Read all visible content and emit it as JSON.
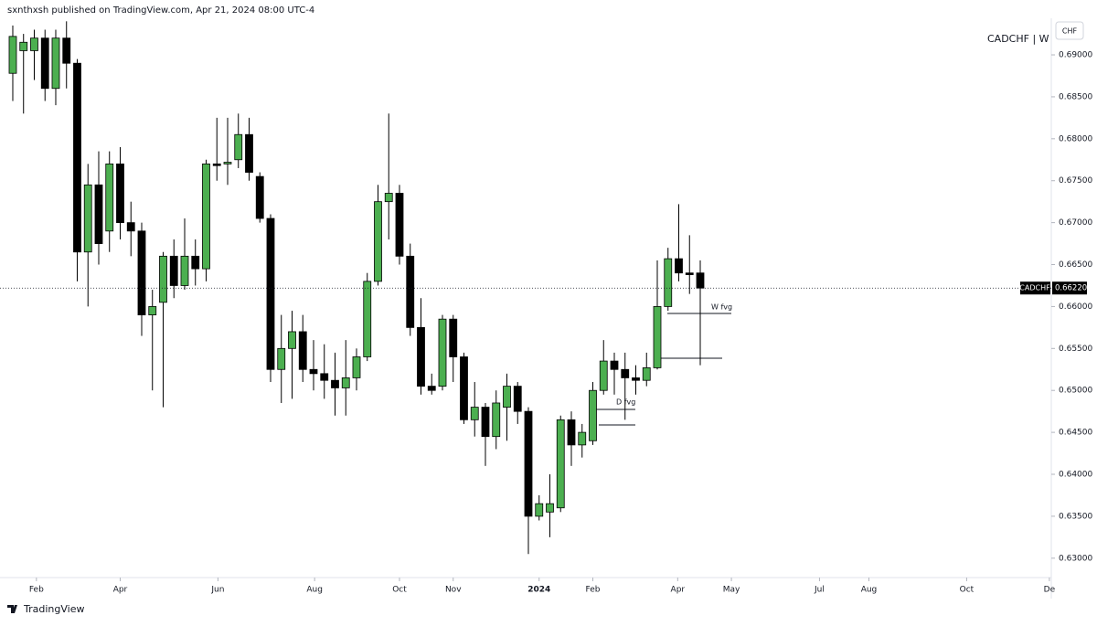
{
  "header": {
    "title": "sxnthxsh published on TradingView.com, Apr 21, 2024 08:00 UTC-4"
  },
  "footer": {
    "brand": "TradingView"
  },
  "chart_data": {
    "type": "candlestick",
    "legend": "CADCHF | W",
    "symbol": "CADCHF",
    "currency": "CHF",
    "up_color": "#4caf50",
    "down_color": "#000000",
    "x": [
      0,
      1,
      2,
      3,
      4,
      5,
      6,
      7,
      8,
      9,
      10,
      11,
      12,
      13,
      14,
      15,
      16,
      17,
      18,
      19,
      20,
      21,
      22,
      23,
      24,
      25,
      26,
      27,
      28,
      29,
      30,
      31,
      32,
      33,
      34,
      35,
      36,
      37,
      38,
      39,
      40,
      41,
      42,
      43,
      44,
      45,
      46,
      47,
      48,
      49,
      50,
      51,
      52,
      53,
      54,
      55,
      56,
      57,
      58,
      59,
      60,
      61,
      62,
      63,
      64
    ],
    "open": [
      0.6878,
      0.6905,
      0.6905,
      0.692,
      0.686,
      0.692,
      0.689,
      0.6665,
      0.6745,
      0.669,
      0.677,
      0.67,
      0.669,
      0.659,
      0.6605,
      0.666,
      0.6625,
      0.666,
      0.6645,
      0.677,
      0.677,
      0.6775,
      0.6805,
      0.6755,
      0.6705,
      0.6525,
      0.655,
      0.657,
      0.6525,
      0.652,
      0.6512,
      0.6503,
      0.6515,
      0.654,
      0.663,
      0.6725,
      0.6735,
      0.666,
      0.6575,
      0.6505,
      0.6505,
      0.6585,
      0.654,
      0.6465,
      0.648,
      0.6445,
      0.648,
      0.6505,
      0.6475,
      0.635,
      0.6355,
      0.636,
      0.6465,
      0.6435,
      0.644,
      0.65,
      0.6535,
      0.6525,
      0.6515,
      0.6512,
      0.6527,
      0.66,
      0.6657,
      0.664,
      0.664
    ],
    "high": [
      0.6935,
      0.6925,
      0.693,
      0.693,
      0.693,
      0.694,
      0.6895,
      0.677,
      0.6785,
      0.6785,
      0.679,
      0.6725,
      0.67,
      0.662,
      0.6665,
      0.668,
      0.6705,
      0.668,
      0.6775,
      0.6825,
      0.6825,
      0.683,
      0.6825,
      0.676,
      0.671,
      0.659,
      0.6595,
      0.659,
      0.656,
      0.6555,
      0.6545,
      0.656,
      0.655,
      0.664,
      0.6745,
      0.683,
      0.6745,
      0.6675,
      0.661,
      0.652,
      0.659,
      0.659,
      0.6545,
      0.651,
      0.6485,
      0.65,
      0.652,
      0.651,
      0.648,
      0.6375,
      0.64,
      0.647,
      0.6475,
      0.646,
      0.651,
      0.656,
      0.6545,
      0.6545,
      0.653,
      0.6545,
      0.6655,
      0.667,
      0.6722,
      0.6685,
      0.6655
    ],
    "low": [
      0.6845,
      0.683,
      0.687,
      0.6845,
      0.684,
      0.686,
      0.663,
      0.66,
      0.665,
      0.6665,
      0.668,
      0.666,
      0.6565,
      0.65,
      0.648,
      0.661,
      0.662,
      0.6625,
      0.663,
      0.675,
      0.6745,
      0.6765,
      0.675,
      0.67,
      0.651,
      0.6485,
      0.649,
      0.651,
      0.65,
      0.649,
      0.647,
      0.647,
      0.65,
      0.6535,
      0.6625,
      0.668,
      0.665,
      0.6565,
      0.6495,
      0.6495,
      0.65,
      0.651,
      0.646,
      0.6445,
      0.641,
      0.643,
      0.644,
      0.646,
      0.6305,
      0.6345,
      0.6325,
      0.6355,
      0.641,
      0.642,
      0.6435,
      0.6495,
      0.6495,
      0.6465,
      0.6495,
      0.6505,
      0.6525,
      0.6595,
      0.663,
      0.6615,
      0.653
    ],
    "close": [
      0.6922,
      0.6915,
      0.692,
      0.686,
      0.692,
      0.689,
      0.6665,
      0.6745,
      0.6675,
      0.677,
      0.67,
      0.669,
      0.659,
      0.66,
      0.666,
      0.6625,
      0.666,
      0.6645,
      0.677,
      0.6768,
      0.6772,
      0.6805,
      0.676,
      0.6705,
      0.6525,
      0.655,
      0.657,
      0.6525,
      0.652,
      0.6512,
      0.6503,
      0.6515,
      0.654,
      0.663,
      0.6725,
      0.6735,
      0.666,
      0.6575,
      0.6505,
      0.65,
      0.6585,
      0.654,
      0.6465,
      0.648,
      0.6445,
      0.6485,
      0.6505,
      0.6475,
      0.635,
      0.6365,
      0.6365,
      0.6465,
      0.6435,
      0.645,
      0.65,
      0.6535,
      0.6525,
      0.6515,
      0.6512,
      0.6527,
      0.66,
      0.6657,
      0.664,
      0.6638,
      0.6622
    ],
    "last_price": {
      "value": 0.6622,
      "label": "0.66220"
    },
    "annotations": [
      "W fvg",
      "D fvg"
    ],
    "xlim": [
      -1.19,
      96.68
    ],
    "ylim": [
      0.62769,
      0.69654
    ],
    "xticks": [
      {
        "value": 2.2,
        "label": "Feb"
      },
      {
        "value": 10.0,
        "label": "Apr"
      },
      {
        "value": 19.1,
        "label": "Jun"
      },
      {
        "value": 28.1,
        "label": "Aug"
      },
      {
        "value": 36.0,
        "label": "Oct"
      },
      {
        "value": 41.0,
        "label": "Nov"
      },
      {
        "value": 49.0,
        "label": "2024"
      },
      {
        "value": 54.0,
        "label": "Feb"
      },
      {
        "value": 61.9,
        "label": "Apr"
      },
      {
        "value": 66.9,
        "label": "May"
      },
      {
        "value": 75.1,
        "label": "Jul"
      },
      {
        "value": 79.7,
        "label": "Aug"
      },
      {
        "value": 88.8,
        "label": "Oct"
      },
      {
        "value": 96.5,
        "label": "De"
      }
    ],
    "yticks": [
      {
        "value": 0.63,
        "label": "0.63000"
      },
      {
        "value": 0.635,
        "label": "0.63500"
      },
      {
        "value": 0.64,
        "label": "0.64000"
      },
      {
        "value": 0.645,
        "label": "0.64500"
      },
      {
        "value": 0.65,
        "label": "0.65000"
      },
      {
        "value": 0.655,
        "label": "0.65500"
      },
      {
        "value": 0.66,
        "label": "0.66000"
      },
      {
        "value": 0.665,
        "label": "0.66500"
      },
      {
        "value": 0.67,
        "label": "0.67000"
      },
      {
        "value": 0.675,
        "label": "0.67500"
      },
      {
        "value": 0.68,
        "label": "0.68000"
      },
      {
        "value": 0.685,
        "label": "0.68500"
      },
      {
        "value": 0.69,
        "label": "0.69000"
      }
    ],
    "grid": false
  }
}
